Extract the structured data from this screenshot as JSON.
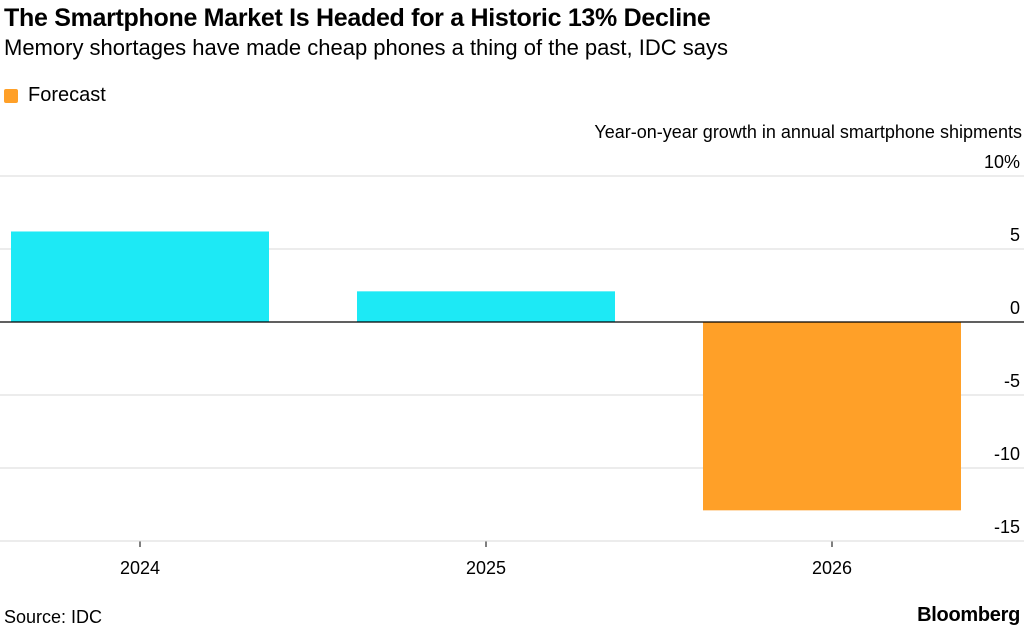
{
  "header": {
    "title": "The Smartphone Market Is Headed for a Historic 13% Decline",
    "subtitle": "Memory shortages have made cheap phones a thing of the past, IDC says"
  },
  "legend": {
    "label": "Forecast",
    "color": "#FFA028"
  },
  "footer": {
    "source": "Source: IDC",
    "brand": "Bloomberg"
  },
  "chart_data": {
    "type": "bar",
    "title": "The Smartphone Market Is Headed for a Historic 13% Decline",
    "subtitle": "Memory shortages have made cheap phones a thing of the past, IDC says",
    "ylabel": "Year-on-year growth in annual smartphone shipments",
    "xlabel": "",
    "categories": [
      "2024",
      "2025",
      "2026"
    ],
    "values": [
      6.2,
      2.1,
      -12.9
    ],
    "forecast": [
      false,
      false,
      true
    ],
    "colors": {
      "actual": "#1DE9F5",
      "forecast": "#FFA028"
    },
    "ylim": [
      -15,
      10
    ],
    "yticks": [
      10,
      5,
      0,
      -5,
      -10,
      -15
    ],
    "ytick_labels": [
      "10%",
      "5",
      "0",
      "-5",
      "-10",
      "-15"
    ],
    "grid": true,
    "legend_position": "top-left"
  }
}
